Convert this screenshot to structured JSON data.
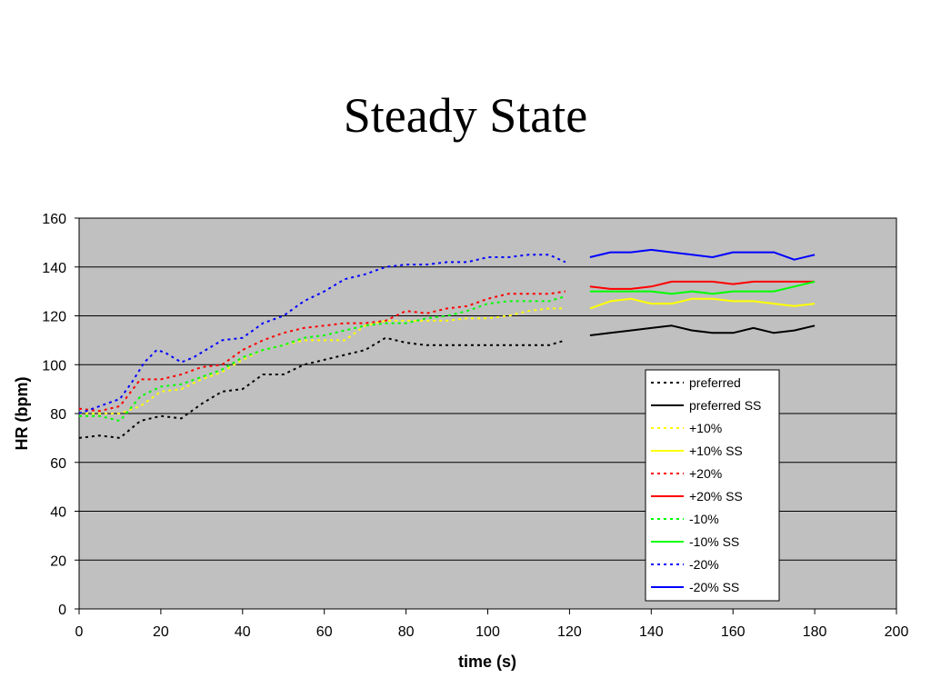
{
  "chart_data": {
    "type": "line",
    "title": "Steady State",
    "xlabel": "time (s)",
    "ylabel": "HR (bpm)",
    "xlim": [
      0,
      200
    ],
    "ylim": [
      0,
      160
    ],
    "x_ticks": [
      0,
      20,
      40,
      60,
      80,
      100,
      120,
      140,
      160,
      180,
      200
    ],
    "y_ticks": [
      0,
      20,
      40,
      60,
      80,
      100,
      120,
      140,
      160
    ],
    "grid": "horizontal",
    "plot_background": "#c0c0c0",
    "legend_position": "lower-right inside plot",
    "series": [
      {
        "name": "preferred",
        "color": "#000000",
        "dashed": true,
        "x": [
          0,
          5,
          10,
          15,
          20,
          25,
          30,
          35,
          40,
          45,
          50,
          55,
          60,
          65,
          70,
          75,
          80,
          85,
          90,
          95,
          100,
          105,
          110,
          115,
          119
        ],
        "y": [
          70,
          71,
          70,
          77,
          79,
          78,
          84,
          89,
          90,
          96,
          96,
          100,
          102,
          104,
          106,
          111,
          109,
          108,
          108,
          108,
          108,
          108,
          108,
          108,
          110
        ]
      },
      {
        "name": "preferred SS",
        "color": "#000000",
        "dashed": false,
        "x": [
          125,
          130,
          135,
          140,
          145,
          150,
          155,
          160,
          165,
          170,
          175,
          180
        ],
        "y": [
          112,
          113,
          114,
          115,
          116,
          114,
          113,
          113,
          115,
          113,
          114,
          116
        ]
      },
      {
        "name": "+10%",
        "color": "#ffff00",
        "dashed": true,
        "x": [
          0,
          5,
          10,
          15,
          20,
          25,
          30,
          35,
          40,
          45,
          50,
          55,
          60,
          65,
          70,
          75,
          80,
          85,
          90,
          95,
          100,
          105,
          110,
          115,
          119
        ],
        "y": [
          80,
          80,
          80,
          83,
          89,
          90,
          94,
          97,
          102,
          106,
          108,
          110,
          110,
          110,
          116,
          118,
          118,
          118,
          118,
          119,
          119,
          120,
          122,
          123,
          123
        ]
      },
      {
        "name": "+10% SS",
        "color": "#ffff00",
        "dashed": false,
        "x": [
          125,
          130,
          135,
          140,
          145,
          150,
          155,
          160,
          165,
          170,
          175,
          180
        ],
        "y": [
          123,
          126,
          127,
          125,
          125,
          127,
          127,
          126,
          126,
          125,
          124,
          125
        ]
      },
      {
        "name": "+20%",
        "color": "#ff0000",
        "dashed": true,
        "x": [
          0,
          5,
          10,
          15,
          20,
          25,
          30,
          35,
          40,
          45,
          50,
          55,
          60,
          65,
          70,
          75,
          80,
          85,
          90,
          95,
          100,
          105,
          110,
          115,
          119
        ],
        "y": [
          82,
          81,
          83,
          94,
          94,
          96,
          99,
          100,
          106,
          110,
          113,
          115,
          116,
          117,
          117,
          118,
          122,
          121,
          123,
          124,
          127,
          129,
          129,
          129,
          130
        ]
      },
      {
        "name": "+20% SS",
        "color": "#ff0000",
        "dashed": false,
        "x": [
          125,
          130,
          135,
          140,
          145,
          150,
          155,
          160,
          165,
          170,
          175,
          180
        ],
        "y": [
          132,
          131,
          131,
          132,
          134,
          134,
          134,
          133,
          134,
          134,
          134,
          134
        ]
      },
      {
        "name": "-10%",
        "color": "#00ff00",
        "dashed": true,
        "x": [
          0,
          5,
          10,
          15,
          20,
          25,
          30,
          35,
          40,
          45,
          50,
          55,
          60,
          65,
          70,
          75,
          80,
          85,
          90,
          95,
          100,
          105,
          110,
          115,
          119
        ],
        "y": [
          79,
          79,
          77,
          87,
          91,
          92,
          95,
          98,
          103,
          106,
          108,
          111,
          112,
          114,
          116,
          117,
          117,
          119,
          120,
          122,
          125,
          126,
          126,
          126,
          128
        ]
      },
      {
        "name": "-10% SS",
        "color": "#00ff00",
        "dashed": false,
        "x": [
          125,
          130,
          135,
          140,
          145,
          150,
          155,
          160,
          165,
          170,
          175,
          180
        ],
        "y": [
          130,
          130,
          130,
          130,
          129,
          130,
          129,
          130,
          130,
          130,
          132,
          134
        ]
      },
      {
        "name": "-20%",
        "color": "#0000ff",
        "dashed": true,
        "x": [
          0,
          5,
          10,
          13,
          16,
          19,
          21,
          25,
          28,
          31,
          35,
          40,
          45,
          50,
          55,
          60,
          65,
          70,
          75,
          80,
          85,
          90,
          95,
          100,
          105,
          110,
          115,
          119
        ],
        "y": [
          80,
          83,
          86,
          93,
          101,
          106,
          105,
          101,
          103,
          106,
          110,
          111,
          117,
          120,
          126,
          130,
          135,
          137,
          140,
          141,
          141,
          142,
          142,
          144,
          144,
          145,
          145,
          142
        ]
      },
      {
        "name": "-20% SS",
        "color": "#0000ff",
        "dashed": false,
        "x": [
          125,
          130,
          135,
          140,
          145,
          150,
          155,
          160,
          165,
          170,
          175,
          180
        ],
        "y": [
          144,
          146,
          146,
          147,
          146,
          145,
          144,
          146,
          146,
          146,
          143,
          145
        ]
      }
    ]
  }
}
